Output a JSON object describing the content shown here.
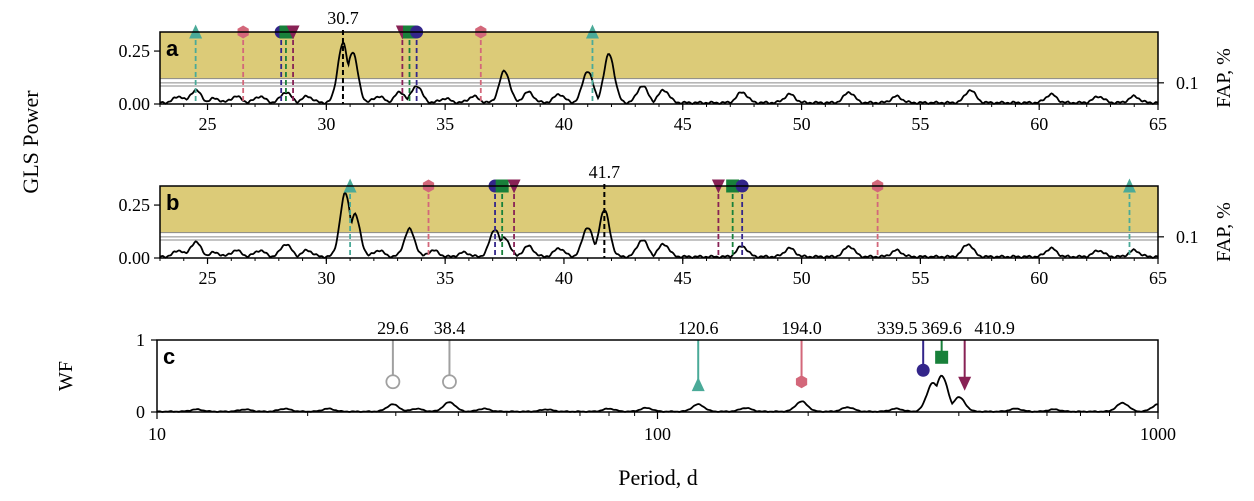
{
  "figure": {
    "ylabel_left": "GLS Power",
    "xlabel": "Period, d",
    "fap_label": "FAP, %",
    "fap_tick": "0.1"
  },
  "colors": {
    "band": "#dccb78",
    "curve": "#000000",
    "teal": "#4aaa98",
    "pink": "#d3677a",
    "purple": "#882255",
    "navy": "#33258a",
    "green": "#18803a",
    "grey": "#a0a0a0"
  },
  "chart_data": [
    {
      "panel": "a",
      "type": "line",
      "ylabel": "",
      "xlim": [
        23,
        65
      ],
      "ylim": [
        0,
        0.34
      ],
      "xticks": [
        25,
        30,
        35,
        40,
        45,
        50,
        55,
        60,
        65
      ],
      "yticks": [
        "0.00",
        "0.25"
      ],
      "band": [
        0.12,
        0.34
      ],
      "fap_lines": [
        0.085,
        0.1,
        0.12
      ],
      "peak_label": "30.7",
      "peak_period": 30.7,
      "peaks": [
        {
          "x": 23.8,
          "y": 0.03
        },
        {
          "x": 24.5,
          "y": 0.06
        },
        {
          "x": 25.3,
          "y": 0.02
        },
        {
          "x": 26.2,
          "y": 0.03
        },
        {
          "x": 27.2,
          "y": 0.03
        },
        {
          "x": 28.3,
          "y": 0.05
        },
        {
          "x": 29.2,
          "y": 0.03
        },
        {
          "x": 30.7,
          "y": 0.28
        },
        {
          "x": 31.1,
          "y": 0.24
        },
        {
          "x": 32.2,
          "y": 0.03
        },
        {
          "x": 33.1,
          "y": 0.05
        },
        {
          "x": 33.8,
          "y": 0.08
        },
        {
          "x": 35.0,
          "y": 0.02
        },
        {
          "x": 36.2,
          "y": 0.03
        },
        {
          "x": 37.5,
          "y": 0.15
        },
        {
          "x": 38.5,
          "y": 0.05
        },
        {
          "x": 39.8,
          "y": 0.04
        },
        {
          "x": 41.0,
          "y": 0.15
        },
        {
          "x": 41.9,
          "y": 0.23
        },
        {
          "x": 43.3,
          "y": 0.08
        },
        {
          "x": 44.2,
          "y": 0.06
        },
        {
          "x": 47.5,
          "y": 0.05
        },
        {
          "x": 49.5,
          "y": 0.04
        },
        {
          "x": 52.0,
          "y": 0.05
        },
        {
          "x": 54.0,
          "y": 0.03
        },
        {
          "x": 57.1,
          "y": 0.06
        },
        {
          "x": 60.5,
          "y": 0.04
        },
        {
          "x": 62.5,
          "y": 0.03
        },
        {
          "x": 64.0,
          "y": 0.03
        }
      ],
      "markers": [
        {
          "x": 24.5,
          "shape": "triangle-up",
          "color": "teal"
        },
        {
          "x": 26.5,
          "shape": "hexagon",
          "color": "pink"
        },
        {
          "x": 28.1,
          "shape": "circle",
          "color": "navy"
        },
        {
          "x": 28.3,
          "shape": "square",
          "color": "green"
        },
        {
          "x": 28.6,
          "shape": "triangle-down",
          "color": "purple"
        },
        {
          "x": 33.2,
          "shape": "triangle-down",
          "color": "purple"
        },
        {
          "x": 33.5,
          "shape": "square",
          "color": "green"
        },
        {
          "x": 33.8,
          "shape": "circle",
          "color": "navy"
        },
        {
          "x": 36.5,
          "shape": "hexagon",
          "color": "pink"
        },
        {
          "x": 41.2,
          "shape": "triangle-up",
          "color": "teal"
        }
      ]
    },
    {
      "panel": "b",
      "type": "line",
      "ylabel": "",
      "xlim": [
        23,
        65
      ],
      "ylim": [
        0,
        0.34
      ],
      "xticks": [
        25,
        30,
        35,
        40,
        45,
        50,
        55,
        60,
        65
      ],
      "yticks": [
        "0.00",
        "0.25"
      ],
      "band": [
        0.12,
        0.34
      ],
      "fap_lines": [
        0.085,
        0.1,
        0.12
      ],
      "peak_label": "41.7",
      "peak_period": 41.7,
      "peaks": [
        {
          "x": 23.8,
          "y": 0.03
        },
        {
          "x": 24.5,
          "y": 0.07
        },
        {
          "x": 25.3,
          "y": 0.02
        },
        {
          "x": 26.2,
          "y": 0.03
        },
        {
          "x": 27.2,
          "y": 0.03
        },
        {
          "x": 28.3,
          "y": 0.06
        },
        {
          "x": 29.2,
          "y": 0.03
        },
        {
          "x": 30.8,
          "y": 0.3
        },
        {
          "x": 31.2,
          "y": 0.2
        },
        {
          "x": 32.2,
          "y": 0.03
        },
        {
          "x": 33.5,
          "y": 0.13
        },
        {
          "x": 34.5,
          "y": 0.03
        },
        {
          "x": 35.8,
          "y": 0.02
        },
        {
          "x": 37.1,
          "y": 0.13
        },
        {
          "x": 37.5,
          "y": 0.09
        },
        {
          "x": 38.5,
          "y": 0.05
        },
        {
          "x": 39.8,
          "y": 0.04
        },
        {
          "x": 41.0,
          "y": 0.14
        },
        {
          "x": 41.7,
          "y": 0.22
        },
        {
          "x": 43.3,
          "y": 0.08
        },
        {
          "x": 44.2,
          "y": 0.06
        },
        {
          "x": 47.5,
          "y": 0.05
        },
        {
          "x": 49.5,
          "y": 0.04
        },
        {
          "x": 52.0,
          "y": 0.05
        },
        {
          "x": 54.0,
          "y": 0.03
        },
        {
          "x": 57.0,
          "y": 0.06
        },
        {
          "x": 60.5,
          "y": 0.04
        },
        {
          "x": 62.5,
          "y": 0.03
        },
        {
          "x": 64.0,
          "y": 0.03
        }
      ],
      "markers": [
        {
          "x": 31.0,
          "shape": "triangle-up",
          "color": "teal"
        },
        {
          "x": 34.3,
          "shape": "hexagon",
          "color": "pink"
        },
        {
          "x": 37.1,
          "shape": "circle",
          "color": "navy"
        },
        {
          "x": 37.4,
          "shape": "square",
          "color": "green"
        },
        {
          "x": 37.9,
          "shape": "triangle-down",
          "color": "purple"
        },
        {
          "x": 46.5,
          "shape": "triangle-down",
          "color": "purple"
        },
        {
          "x": 47.1,
          "shape": "square",
          "color": "green"
        },
        {
          "x": 47.5,
          "shape": "circle",
          "color": "navy"
        },
        {
          "x": 53.2,
          "shape": "hexagon",
          "color": "pink"
        },
        {
          "x": 63.8,
          "shape": "triangle-up",
          "color": "teal"
        }
      ]
    },
    {
      "panel": "c",
      "type": "line",
      "ylabel": "WF",
      "xscale": "log",
      "xlim": [
        10,
        1000
      ],
      "ylim": [
        0,
        1
      ],
      "xticks": [
        10,
        100,
        1000
      ],
      "yticks": [
        "0",
        "1"
      ],
      "peaks": [
        {
          "x": 12,
          "y": 0.03
        },
        {
          "x": 15,
          "y": 0.03
        },
        {
          "x": 18,
          "y": 0.04
        },
        {
          "x": 22,
          "y": 0.04
        },
        {
          "x": 29.6,
          "y": 0.1
        },
        {
          "x": 33,
          "y": 0.04
        },
        {
          "x": 38.4,
          "y": 0.13
        },
        {
          "x": 45,
          "y": 0.04
        },
        {
          "x": 60,
          "y": 0.03
        },
        {
          "x": 80,
          "y": 0.04
        },
        {
          "x": 95,
          "y": 0.05
        },
        {
          "x": 120.6,
          "y": 0.1
        },
        {
          "x": 150,
          "y": 0.05
        },
        {
          "x": 194.0,
          "y": 0.14
        },
        {
          "x": 240,
          "y": 0.06
        },
        {
          "x": 300,
          "y": 0.04
        },
        {
          "x": 355,
          "y": 0.4
        },
        {
          "x": 369.6,
          "y": 0.5
        },
        {
          "x": 400,
          "y": 0.2
        },
        {
          "x": 520,
          "y": 0.04
        },
        {
          "x": 620,
          "y": 0.03
        },
        {
          "x": 850,
          "y": 0.12
        },
        {
          "x": 1000,
          "y": 0.1
        }
      ],
      "markers": [
        {
          "x": 29.6,
          "label": "29.6",
          "shape": "circle-open",
          "color": "grey",
          "y": 0.42
        },
        {
          "x": 38.4,
          "label": "38.4",
          "shape": "circle-open",
          "color": "grey",
          "y": 0.42
        },
        {
          "x": 120.6,
          "label": "120.6",
          "shape": "triangle-up",
          "color": "teal",
          "y": 0.38
        },
        {
          "x": 194.0,
          "label": "194.0",
          "shape": "hexagon",
          "color": "pink",
          "y": 0.42
        },
        {
          "x": 339.5,
          "label": "339.5",
          "shape": "circle",
          "color": "navy",
          "y": 0.58
        },
        {
          "x": 369.6,
          "label": "369.6",
          "shape": "square",
          "color": "green",
          "y": 0.76
        },
        {
          "x": 410.9,
          "label": "410.9",
          "shape": "triangle-down",
          "color": "purple",
          "y": 0.4
        }
      ]
    }
  ]
}
